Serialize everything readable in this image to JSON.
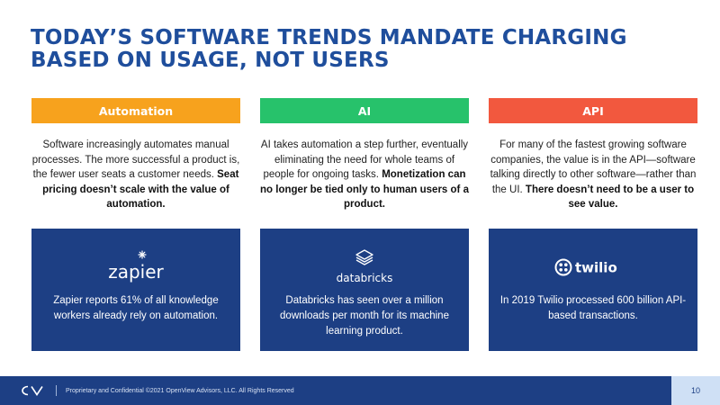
{
  "slide": {
    "title_line1": "TODAY’S SOFTWARE TRENDS MANDATE CHARGING",
    "title_line2": "BASED ON USAGE, NOT USERS"
  },
  "columns": [
    {
      "header": "Automation",
      "color": "#f7a21d",
      "desc_plain": "Software increasingly automates manual processes. The more successful a product is, the fewer user seats a customer needs. ",
      "desc_bold": "Seat pricing doesn’t scale with the value of automation.",
      "card": {
        "logo": "zapier",
        "text": "Zapier reports 61% of all knowledge workers already rely on automation."
      }
    },
    {
      "header": "AI",
      "color": "#27c26b",
      "desc_plain": "AI takes automation a step further, eventually eliminating the need for whole teams of people for ongoing tasks. ",
      "desc_bold": "Monetization can no longer be tied only to human users of a product.",
      "card": {
        "logo": "databricks",
        "text": "Databricks has seen over a million downloads per month for its machine learning product."
      }
    },
    {
      "header": "API",
      "color": "#f2583e",
      "desc_plain": "For many of the fastest growing software companies, the value is in the API—software talking directly to other software—rather than the UI. ",
      "desc_bold": "There doesn’t need to be a user to see value.",
      "card": {
        "logo": "twilio",
        "text": "In 2019 Twilio processed 600 billion API-based transactions."
      }
    }
  ],
  "footer": {
    "text": "Proprietary and Confidential ©2021 OpenView Advisors, LLC. All Rights Reserved",
    "page": "10"
  },
  "colors": {
    "navy": "#1d3f84",
    "title_blue": "#1f4e9c"
  }
}
